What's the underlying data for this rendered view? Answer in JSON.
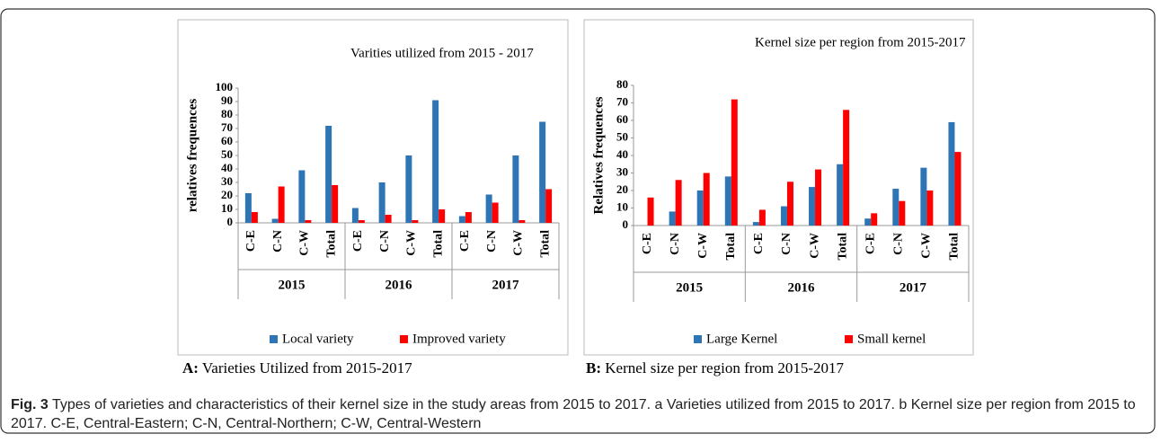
{
  "chart_data": [
    {
      "type": "bar",
      "title": "Varities utilized from 2015 - 2017",
      "y_label": "relatives frequences",
      "categories": [
        "C-E",
        "C-N",
        "C-W",
        "Total",
        "C-E",
        "C-N",
        "C-W",
        "Total",
        "C-E",
        "C-N",
        "C-W",
        "Total"
      ],
      "category_groups": [
        "2015",
        "2016",
        "2017"
      ],
      "series": [
        {
          "name": "Local variety",
          "color": "#2e75b6",
          "values": [
            22,
            3,
            39,
            72,
            11,
            30,
            50,
            91,
            5,
            21,
            50,
            75
          ]
        },
        {
          "name": "Improved variety",
          "color": "#ff0000",
          "values": [
            8,
            27,
            2,
            28,
            2,
            6,
            2,
            10,
            8,
            15,
            2,
            25
          ]
        }
      ],
      "ylim": [
        0,
        100
      ],
      "yticks": [
        0,
        10,
        20,
        30,
        40,
        50,
        60,
        70,
        80,
        90,
        100
      ],
      "legend": "bottom"
    },
    {
      "type": "bar",
      "title": "Kernel size per region from 2015-2017",
      "y_label": "Relatives frequences",
      "categories": [
        "C-E",
        "C-N",
        "C-W",
        "Total",
        "C-E",
        "C-N",
        "C-W",
        "Total",
        "C-E",
        "C-N",
        "C-W",
        "Total"
      ],
      "category_groups": [
        "2015",
        "2016",
        "2017"
      ],
      "series": [
        {
          "name": "Large Kernel",
          "color": "#2e75b6",
          "values": [
            0,
            8,
            20,
            28,
            2,
            11,
            22,
            35,
            4,
            21,
            33,
            59
          ]
        },
        {
          "name": "Small kernel",
          "color": "#ff0000",
          "values": [
            16,
            26,
            30,
            72,
            9,
            25,
            32,
            66,
            7,
            14,
            20,
            42
          ]
        }
      ],
      "ylim": [
        0,
        80
      ],
      "yticks": [
        0,
        10,
        20,
        30,
        40,
        50,
        60,
        70,
        80
      ],
      "legend": "bottom"
    }
  ],
  "figure": {
    "panels": [
      {
        "label": "A:",
        "text": "Varieties Utilized from 2015-2017"
      },
      {
        "label": "B:",
        "text": "Kernel size per region from 2015-2017"
      }
    ],
    "caption": {
      "label": "Fig. 3",
      "text": "Types of varieties and characteristics of their kernel size in the study areas from 2015 to 2017. a Varieties utilized from 2015 to 2017. b Kernel size per region from 2015 to 2017. C-E, Central-Eastern; C-N, Central-Northern; C-W, Central-Western"
    }
  }
}
